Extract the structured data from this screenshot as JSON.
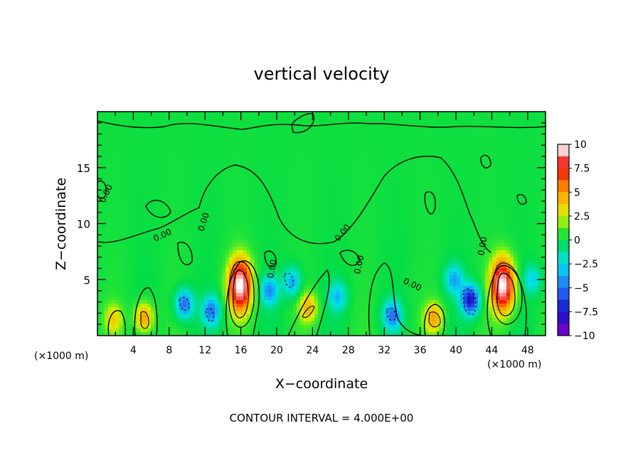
{
  "chart_data": {
    "type": "heatmap",
    "title": "vertical velocity",
    "xlabel": "X−coordinate",
    "ylabel": "Z−coordinate",
    "x_unit": "(×1000 m)",
    "y_unit": "(×1000 m)",
    "xlim": [
      0,
      50
    ],
    "ylim": [
      0,
      20
    ],
    "x_ticks": [
      4,
      8,
      12,
      16,
      20,
      24,
      28,
      32,
      36,
      40,
      44,
      48
    ],
    "y_ticks": [
      5,
      10,
      15
    ],
    "footer": "CONTOUR INTERVAL = 4.000E+00",
    "contour_label": "0.00",
    "colorbar": {
      "range": [
        -10,
        10
      ],
      "tick_labels": [
        "10",
        "7.5",
        "5",
        "2.5",
        "0",
        "−2.5",
        "−5",
        "−7.5",
        "−10"
      ],
      "tick_values": [
        10,
        7.5,
        5,
        2.5,
        0,
        -2.5,
        -5,
        -7.5,
        -10
      ]
    },
    "features": [
      {
        "kind": "updraft",
        "x": 15.9,
        "z": 4.5,
        "peak": 11
      },
      {
        "kind": "updraft",
        "x": 45.2,
        "z": 4.5,
        "peak": 11
      },
      {
        "kind": "updraft",
        "x": 5.2,
        "z": 1.6,
        "peak": 5
      },
      {
        "kind": "updraft",
        "x": 37.5,
        "z": 1.6,
        "peak": 4.5
      },
      {
        "kind": "updraft",
        "x": 23.5,
        "z": 2.5,
        "peak": 4
      },
      {
        "kind": "updraft",
        "x": 1.8,
        "z": 1.5,
        "peak": 3
      },
      {
        "kind": "downdraft",
        "x": 9.7,
        "z": 2.8,
        "peak": -5.5
      },
      {
        "kind": "downdraft",
        "x": 12.7,
        "z": 2.2,
        "peak": -5
      },
      {
        "kind": "downdraft",
        "x": 19.2,
        "z": 4.0,
        "peak": -4.5
      },
      {
        "kind": "downdraft",
        "x": 21.7,
        "z": 4.8,
        "peak": -4
      },
      {
        "kind": "downdraft",
        "x": 32.9,
        "z": 1.8,
        "peak": -5
      },
      {
        "kind": "downdraft",
        "x": 41.6,
        "z": 3.2,
        "peak": -8
      },
      {
        "kind": "downdraft",
        "x": 39.8,
        "z": 5.0,
        "peak": -4
      },
      {
        "kind": "downdraft",
        "x": 26.8,
        "z": 3.5,
        "peak": -3.5
      },
      {
        "kind": "downdraft",
        "x": 48.5,
        "z": 5.0,
        "peak": -3
      }
    ]
  }
}
